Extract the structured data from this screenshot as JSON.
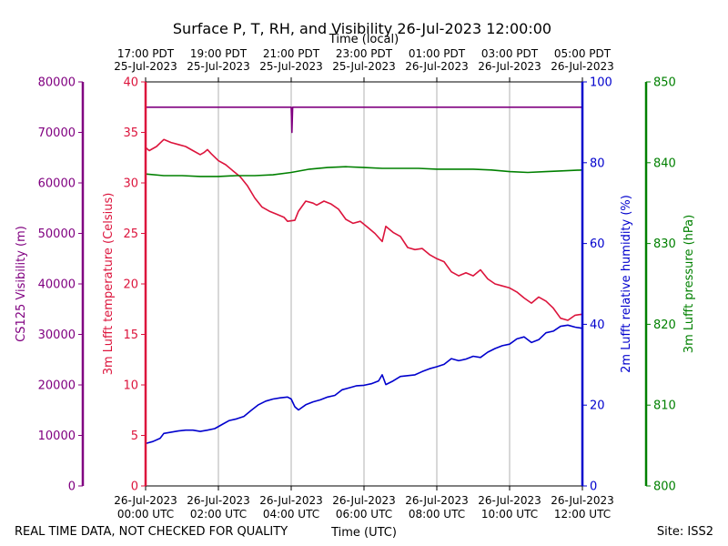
{
  "chart_data": {
    "type": "line",
    "title": "Surface P, T, RH, and Visibility 26-Jul-2023 12:00:00",
    "top_axis_label": "Time (local)",
    "xlabel": "Time (UTC)",
    "footer_left": "REAL TIME DATA, NOT CHECKED FOR QUALITY",
    "footer_right": "Site: ISS2",
    "x_range_hours_utc": [
      0,
      12
    ],
    "bottom_ticks": [
      {
        "line1": "26-Jul-2023",
        "line2": "00:00 UTC"
      },
      {
        "line1": "26-Jul-2023",
        "line2": "02:00 UTC"
      },
      {
        "line1": "26-Jul-2023",
        "line2": "04:00 UTC"
      },
      {
        "line1": "26-Jul-2023",
        "line2": "06:00 UTC"
      },
      {
        "line1": "26-Jul-2023",
        "line2": "08:00 UTC"
      },
      {
        "line1": "26-Jul-2023",
        "line2": "10:00 UTC"
      },
      {
        "line1": "26-Jul-2023",
        "line2": "12:00 UTC"
      }
    ],
    "top_ticks": [
      {
        "line1": "17:00 PDT",
        "line2": "25-Jul-2023"
      },
      {
        "line1": "19:00 PDT",
        "line2": "25-Jul-2023"
      },
      {
        "line1": "21:00 PDT",
        "line2": "25-Jul-2023"
      },
      {
        "line1": "23:00 PDT",
        "line2": "25-Jul-2023"
      },
      {
        "line1": "01:00 PDT",
        "line2": "26-Jul-2023"
      },
      {
        "line1": "03:00 PDT",
        "line2": "26-Jul-2023"
      },
      {
        "line1": "05:00 PDT",
        "line2": "26-Jul-2023"
      }
    ],
    "grid_x": true,
    "axes": {
      "visibility": {
        "label": "CS125 Visibility (m)",
        "min": 0,
        "max": 80000,
        "ticks": [
          0,
          10000,
          20000,
          30000,
          40000,
          50000,
          60000,
          70000,
          80000
        ],
        "color": "#800080"
      },
      "temperature": {
        "label": "3m Lufft temperature (Celsius)",
        "min": 0,
        "max": 40,
        "ticks": [
          0,
          5,
          10,
          15,
          20,
          25,
          30,
          35,
          40
        ],
        "color": "#dc143c"
      },
      "humidity": {
        "label": "2m Lufft relative humidity (%)",
        "min": 0,
        "max": 100,
        "ticks": [
          0,
          20,
          40,
          60,
          80,
          100
        ],
        "color": "#0000cd"
      },
      "pressure": {
        "label": "3m Lufft pressure (hPa)",
        "min": 800,
        "max": 850,
        "ticks": [
          800,
          810,
          820,
          830,
          840,
          850
        ],
        "color": "#008000"
      }
    },
    "series": [
      {
        "axis": "visibility",
        "color": "#800080",
        "points": [
          [
            0,
            75000
          ],
          [
            4.0,
            75000
          ],
          [
            4.02,
            70000
          ],
          [
            4.04,
            75000
          ],
          [
            12,
            75000
          ]
        ]
      },
      {
        "axis": "temperature",
        "color": "#dc143c",
        "points": [
          [
            0,
            33.5
          ],
          [
            0.1,
            33.2
          ],
          [
            0.3,
            33.6
          ],
          [
            0.5,
            34.3
          ],
          [
            0.7,
            34.0
          ],
          [
            0.9,
            33.8
          ],
          [
            1.1,
            33.6
          ],
          [
            1.3,
            33.2
          ],
          [
            1.5,
            32.8
          ],
          [
            1.6,
            33.0
          ],
          [
            1.7,
            33.3
          ],
          [
            1.8,
            32.9
          ],
          [
            2.0,
            32.2
          ],
          [
            2.2,
            31.8
          ],
          [
            2.4,
            31.2
          ],
          [
            2.6,
            30.6
          ],
          [
            2.8,
            29.7
          ],
          [
            3.0,
            28.5
          ],
          [
            3.2,
            27.6
          ],
          [
            3.4,
            27.2
          ],
          [
            3.6,
            26.9
          ],
          [
            3.8,
            26.6
          ],
          [
            3.9,
            26.2
          ],
          [
            4.1,
            26.3
          ],
          [
            4.2,
            27.2
          ],
          [
            4.4,
            28.2
          ],
          [
            4.6,
            28.0
          ],
          [
            4.7,
            27.8
          ],
          [
            4.9,
            28.2
          ],
          [
            5.1,
            27.9
          ],
          [
            5.3,
            27.4
          ],
          [
            5.5,
            26.4
          ],
          [
            5.7,
            26.0
          ],
          [
            5.9,
            26.2
          ],
          [
            6.1,
            25.6
          ],
          [
            6.3,
            25.0
          ],
          [
            6.5,
            24.2
          ],
          [
            6.6,
            25.7
          ],
          [
            6.8,
            25.1
          ],
          [
            7.0,
            24.7
          ],
          [
            7.2,
            23.6
          ],
          [
            7.4,
            23.4
          ],
          [
            7.6,
            23.5
          ],
          [
            7.8,
            22.9
          ],
          [
            8.0,
            22.5
          ],
          [
            8.2,
            22.2
          ],
          [
            8.4,
            21.2
          ],
          [
            8.6,
            20.8
          ],
          [
            8.8,
            21.1
          ],
          [
            9.0,
            20.8
          ],
          [
            9.2,
            21.4
          ],
          [
            9.4,
            20.5
          ],
          [
            9.6,
            20.0
          ],
          [
            9.8,
            19.8
          ],
          [
            10.0,
            19.6
          ],
          [
            10.2,
            19.2
          ],
          [
            10.4,
            18.6
          ],
          [
            10.6,
            18.1
          ],
          [
            10.8,
            18.7
          ],
          [
            11.0,
            18.3
          ],
          [
            11.2,
            17.6
          ],
          [
            11.4,
            16.6
          ],
          [
            11.6,
            16.4
          ],
          [
            11.8,
            16.9
          ],
          [
            12.0,
            17.0
          ]
        ]
      },
      {
        "axis": "humidity",
        "color": "#0000cd",
        "points": [
          [
            0,
            10.5
          ],
          [
            0.2,
            11.0
          ],
          [
            0.4,
            11.8
          ],
          [
            0.5,
            13.0
          ],
          [
            0.7,
            13.3
          ],
          [
            0.9,
            13.6
          ],
          [
            1.1,
            13.8
          ],
          [
            1.3,
            13.8
          ],
          [
            1.5,
            13.5
          ],
          [
            1.7,
            13.8
          ],
          [
            1.9,
            14.2
          ],
          [
            2.1,
            15.2
          ],
          [
            2.3,
            16.2
          ],
          [
            2.5,
            16.6
          ],
          [
            2.7,
            17.2
          ],
          [
            2.9,
            18.7
          ],
          [
            3.1,
            20.1
          ],
          [
            3.3,
            21.0
          ],
          [
            3.5,
            21.5
          ],
          [
            3.7,
            21.8
          ],
          [
            3.9,
            22.0
          ],
          [
            4.0,
            21.5
          ],
          [
            4.1,
            19.6
          ],
          [
            4.2,
            18.8
          ],
          [
            4.4,
            20.1
          ],
          [
            4.6,
            20.8
          ],
          [
            4.8,
            21.3
          ],
          [
            5.0,
            22.0
          ],
          [
            5.2,
            22.4
          ],
          [
            5.4,
            23.8
          ],
          [
            5.6,
            24.3
          ],
          [
            5.8,
            24.8
          ],
          [
            6.0,
            24.9
          ],
          [
            6.2,
            25.3
          ],
          [
            6.4,
            26.0
          ],
          [
            6.5,
            27.5
          ],
          [
            6.6,
            25.1
          ],
          [
            6.8,
            26.0
          ],
          [
            7.0,
            27.1
          ],
          [
            7.2,
            27.3
          ],
          [
            7.4,
            27.5
          ],
          [
            7.6,
            28.3
          ],
          [
            7.8,
            29.0
          ],
          [
            8.0,
            29.5
          ],
          [
            8.2,
            30.1
          ],
          [
            8.4,
            31.5
          ],
          [
            8.6,
            31.0
          ],
          [
            8.8,
            31.4
          ],
          [
            9.0,
            32.1
          ],
          [
            9.2,
            31.8
          ],
          [
            9.4,
            33.1
          ],
          [
            9.6,
            34.0
          ],
          [
            9.8,
            34.7
          ],
          [
            10.0,
            35.1
          ],
          [
            10.2,
            36.4
          ],
          [
            10.4,
            36.9
          ],
          [
            10.6,
            35.5
          ],
          [
            10.8,
            36.2
          ],
          [
            11.0,
            37.9
          ],
          [
            11.2,
            38.3
          ],
          [
            11.4,
            39.5
          ],
          [
            11.6,
            39.8
          ],
          [
            11.8,
            39.3
          ],
          [
            12.0,
            39.0
          ]
        ]
      },
      {
        "axis": "pressure",
        "color": "#008000",
        "points": [
          [
            0,
            838.6
          ],
          [
            0.5,
            838.4
          ],
          [
            1.0,
            838.4
          ],
          [
            1.5,
            838.3
          ],
          [
            2.0,
            838.3
          ],
          [
            2.5,
            838.4
          ],
          [
            3.0,
            838.4
          ],
          [
            3.5,
            838.5
          ],
          [
            4.0,
            838.8
          ],
          [
            4.5,
            839.2
          ],
          [
            5.0,
            839.4
          ],
          [
            5.5,
            839.5
          ],
          [
            6.0,
            839.4
          ],
          [
            6.5,
            839.3
          ],
          [
            7.0,
            839.3
          ],
          [
            7.5,
            839.3
          ],
          [
            8.0,
            839.2
          ],
          [
            8.5,
            839.2
          ],
          [
            9.0,
            839.2
          ],
          [
            9.5,
            839.1
          ],
          [
            10.0,
            838.9
          ],
          [
            10.5,
            838.8
          ],
          [
            11.0,
            838.9
          ],
          [
            11.5,
            839.0
          ],
          [
            12.0,
            839.1
          ]
        ]
      }
    ]
  }
}
